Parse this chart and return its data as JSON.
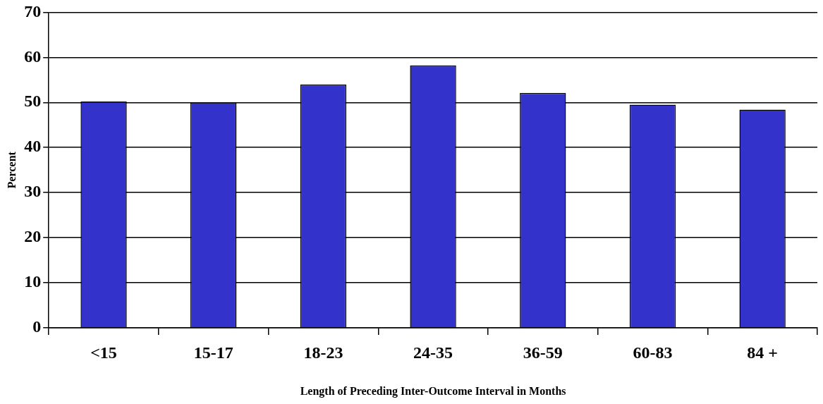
{
  "chart_data": {
    "type": "bar",
    "xlabel": "Length of Preceding Inter-Outcome Interval in Months",
    "ylabel": "Percent",
    "categories": [
      "<15",
      "15-17",
      "18-23",
      "24-35",
      "36-59",
      "60-83",
      "84 +"
    ],
    "values": [
      50.2,
      50.0,
      54.0,
      58.2,
      52.1,
      49.5,
      48.4
    ],
    "color": "#3333cc",
    "ylim": [
      0,
      70
    ],
    "yticks": [
      0,
      10,
      20,
      30,
      40,
      50,
      60,
      70
    ],
    "grid": "y",
    "legend": false
  }
}
